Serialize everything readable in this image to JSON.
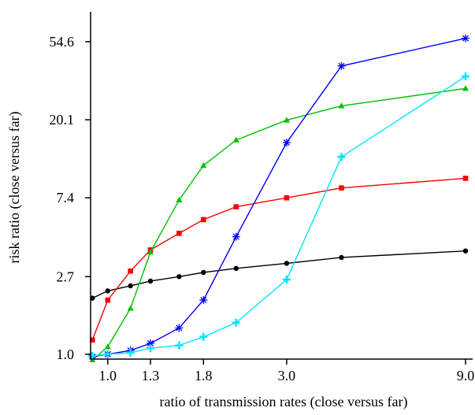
{
  "chart_data": {
    "type": "line",
    "title": "",
    "xlabel": "ratio of transmission rates (close versus far)",
    "ylabel": "risk ratio (close versus far)",
    "x_scale": "log",
    "y_scale": "log",
    "xlim": [
      0.9,
      9.4
    ],
    "ylim": [
      0.94,
      80
    ],
    "x_ticks": [
      1.0,
      1.3,
      1.8,
      3.0,
      9.0
    ],
    "x_tick_labels": [
      "1.0",
      "1.3",
      "1.8",
      "3.0",
      "9.0"
    ],
    "y_ticks": [
      1.0,
      2.7,
      7.4,
      20.1,
      54.6
    ],
    "y_tick_labels": [
      "1.0",
      "2.7",
      "7.4",
      "20.1",
      "54.6"
    ],
    "grid": false,
    "legend": "none",
    "x": [
      0.91,
      1.0,
      1.15,
      1.3,
      1.55,
      1.8,
      2.2,
      3.0,
      4.2,
      9.0
    ],
    "series": [
      {
        "color": "#000000",
        "marker": "circle",
        "values": [
          2.05,
          2.25,
          2.4,
          2.55,
          2.7,
          2.85,
          3.0,
          3.2,
          3.45,
          3.75
        ]
      },
      {
        "color": "#ff0000",
        "marker": "square",
        "values": [
          1.2,
          2.0,
          2.9,
          3.8,
          4.7,
          5.6,
          6.6,
          7.4,
          8.4,
          9.5
        ]
      },
      {
        "color": "#00c000",
        "marker": "triangle",
        "values": [
          0.93,
          1.1,
          1.8,
          3.7,
          7.2,
          11.2,
          15.5,
          20.0,
          24.0,
          30.0
        ]
      },
      {
        "color": "#0000ff",
        "marker": "asterisk",
        "values": [
          0.97,
          1.0,
          1.05,
          1.15,
          1.4,
          2.0,
          4.5,
          15.0,
          40.0,
          57.0
        ]
      },
      {
        "color": "#00e5ff",
        "marker": "cross",
        "values": [
          0.98,
          1.0,
          1.02,
          1.08,
          1.12,
          1.25,
          1.5,
          2.6,
          12.5,
          35.0
        ]
      }
    ]
  }
}
